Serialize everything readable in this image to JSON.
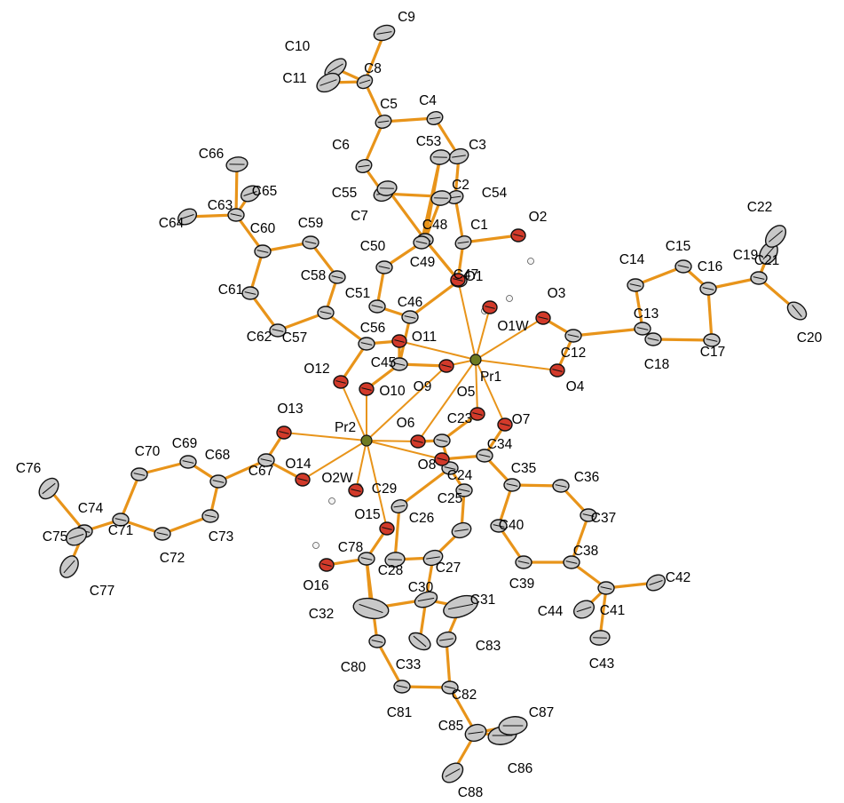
{
  "atoms": [
    {
      "id": "C1",
      "el": "C"
    },
    {
      "id": "C2",
      "el": "C"
    },
    {
      "id": "C3",
      "el": "C"
    },
    {
      "id": "C4",
      "el": "C"
    },
    {
      "id": "C5",
      "el": "C"
    },
    {
      "id": "C6",
      "el": "C"
    },
    {
      "id": "C7",
      "el": "C"
    },
    {
      "id": "C8",
      "el": "C"
    },
    {
      "id": "C9",
      "el": "C"
    },
    {
      "id": "C10",
      "el": "C"
    },
    {
      "id": "C11",
      "el": "C"
    },
    {
      "id": "C12",
      "el": "C"
    },
    {
      "id": "C13",
      "el": "C"
    },
    {
      "id": "C14",
      "el": "C"
    },
    {
      "id": "C15",
      "el": "C"
    },
    {
      "id": "C16",
      "el": "C"
    },
    {
      "id": "C17",
      "el": "C"
    },
    {
      "id": "C18",
      "el": "C"
    },
    {
      "id": "C19",
      "el": "C"
    },
    {
      "id": "C20",
      "el": "C"
    },
    {
      "id": "C21",
      "el": "C"
    },
    {
      "id": "C22",
      "el": "C"
    },
    {
      "id": "C23",
      "el": "C"
    },
    {
      "id": "C24",
      "el": "C"
    },
    {
      "id": "C25",
      "el": "C"
    },
    {
      "id": "C26",
      "el": "C"
    },
    {
      "id": "C27",
      "el": "C"
    },
    {
      "id": "C28",
      "el": "C"
    },
    {
      "id": "C29",
      "el": "C"
    },
    {
      "id": "C30",
      "el": "C"
    },
    {
      "id": "C31",
      "el": "C"
    },
    {
      "id": "C32",
      "el": "C"
    },
    {
      "id": "C33",
      "el": "C"
    },
    {
      "id": "C34",
      "el": "C"
    },
    {
      "id": "C35",
      "el": "C"
    },
    {
      "id": "C36",
      "el": "C"
    },
    {
      "id": "C37",
      "el": "C"
    },
    {
      "id": "C38",
      "el": "C"
    },
    {
      "id": "C39",
      "el": "C"
    },
    {
      "id": "C40",
      "el": "C"
    },
    {
      "id": "C41",
      "el": "C"
    },
    {
      "id": "C42",
      "el": "C"
    },
    {
      "id": "C43",
      "el": "C"
    },
    {
      "id": "C44",
      "el": "C"
    },
    {
      "id": "C45",
      "el": "C"
    },
    {
      "id": "C46",
      "el": "C"
    },
    {
      "id": "C47",
      "el": "C"
    },
    {
      "id": "C48",
      "el": "C"
    },
    {
      "id": "C49",
      "el": "C"
    },
    {
      "id": "C50",
      "el": "C"
    },
    {
      "id": "C51",
      "el": "C"
    },
    {
      "id": "C53",
      "el": "C"
    },
    {
      "id": "C54",
      "el": "C"
    },
    {
      "id": "C55",
      "el": "C"
    },
    {
      "id": "C56",
      "el": "C"
    },
    {
      "id": "C57",
      "el": "C"
    },
    {
      "id": "C58",
      "el": "C"
    },
    {
      "id": "C59",
      "el": "C"
    },
    {
      "id": "C60",
      "el": "C"
    },
    {
      "id": "C61",
      "el": "C"
    },
    {
      "id": "C62",
      "el": "C"
    },
    {
      "id": "C63",
      "el": "C"
    },
    {
      "id": "C64",
      "el": "C"
    },
    {
      "id": "C65",
      "el": "C"
    },
    {
      "id": "C66",
      "el": "C"
    },
    {
      "id": "C67",
      "el": "C"
    },
    {
      "id": "C68",
      "el": "C"
    },
    {
      "id": "C69",
      "el": "C"
    },
    {
      "id": "C70",
      "el": "C"
    },
    {
      "id": "C71",
      "el": "C"
    },
    {
      "id": "C72",
      "el": "C"
    },
    {
      "id": "C73",
      "el": "C"
    },
    {
      "id": "C74",
      "el": "C"
    },
    {
      "id": "C75",
      "el": "C"
    },
    {
      "id": "C76",
      "el": "C"
    },
    {
      "id": "C77",
      "el": "C"
    },
    {
      "id": "C78",
      "el": "C"
    },
    {
      "id": "C80",
      "el": "C"
    },
    {
      "id": "C81",
      "el": "C"
    },
    {
      "id": "C82",
      "el": "C"
    },
    {
      "id": "C83",
      "el": "C"
    },
    {
      "id": "C85",
      "el": "C"
    },
    {
      "id": "C86",
      "el": "C"
    },
    {
      "id": "C87",
      "el": "C"
    },
    {
      "id": "C88",
      "el": "C"
    },
    {
      "id": "O1",
      "el": "O"
    },
    {
      "id": "O2",
      "el": "O"
    },
    {
      "id": "O3",
      "el": "O"
    },
    {
      "id": "O4",
      "el": "O"
    },
    {
      "id": "O5",
      "el": "O"
    },
    {
      "id": "O6",
      "el": "O"
    },
    {
      "id": "O7",
      "el": "O"
    },
    {
      "id": "O8",
      "el": "O"
    },
    {
      "id": "O9",
      "el": "O"
    },
    {
      "id": "O10",
      "el": "O"
    },
    {
      "id": "O11",
      "el": "O"
    },
    {
      "id": "O12",
      "el": "O"
    },
    {
      "id": "O13",
      "el": "O"
    },
    {
      "id": "O14",
      "el": "O"
    },
    {
      "id": "O15",
      "el": "O"
    },
    {
      "id": "O16",
      "el": "O"
    },
    {
      "id": "O1W",
      "el": "O"
    },
    {
      "id": "O2W",
      "el": "O"
    },
    {
      "id": "Pr1",
      "el": "Pr"
    },
    {
      "id": "Pr2",
      "el": "Pr"
    }
  ],
  "colors": {
    "bond": "#e8941a",
    "carbon": "#c8c8c8",
    "oxygen": "#d23a2a",
    "praseodymium": "#6e7b22",
    "label": "#000000"
  }
}
